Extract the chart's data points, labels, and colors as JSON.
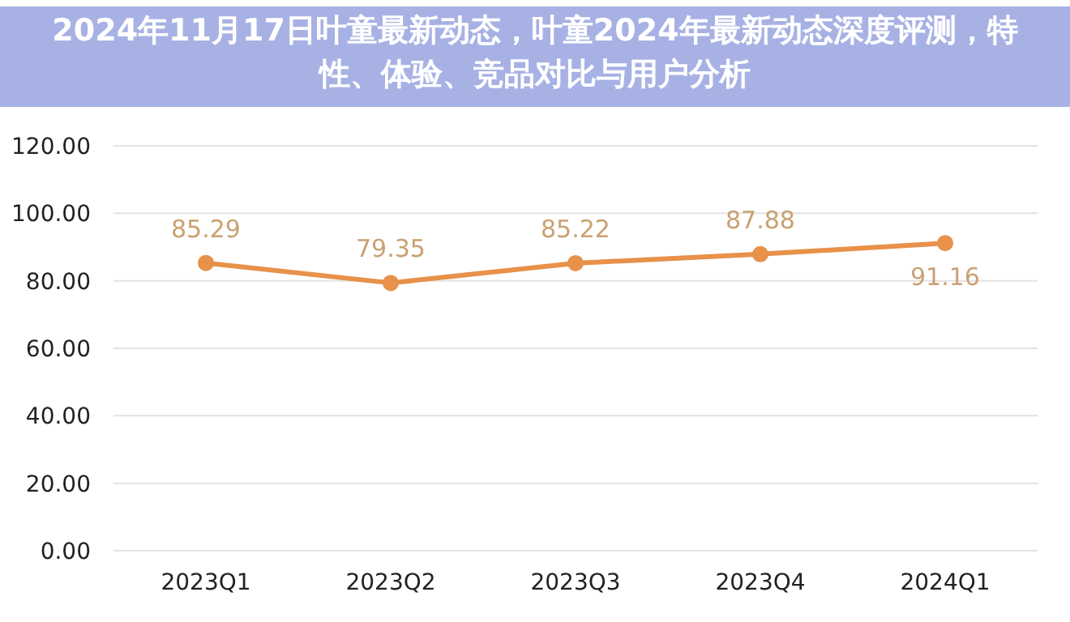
{
  "chart_data": {
    "type": "line",
    "title": "2024年11月17日叶童最新动态，叶童2024年最新动态深度评测，特性、体验、竞品对比与用户分析",
    "categories": [
      "2023Q1",
      "2023Q2",
      "2023Q3",
      "2023Q4",
      "2024Q1"
    ],
    "series": [
      {
        "color": "#e8914a",
        "values": [
          85.29,
          79.35,
          85.22,
          87.88,
          91.16
        ]
      }
    ],
    "ylim": [
      0,
      120
    ],
    "yticks": [
      {
        "value": 0,
        "label": "0.00"
      },
      {
        "value": 20,
        "label": "20.00"
      },
      {
        "value": 40,
        "label": "40.00"
      },
      {
        "value": 60,
        "label": "60.00"
      },
      {
        "value": 80,
        "label": "80.00"
      },
      {
        "value": 100,
        "label": "100.00"
      },
      {
        "value": 120,
        "label": "120.00"
      }
    ],
    "grid": "y",
    "marker": "circle",
    "data_labels": true
  }
}
